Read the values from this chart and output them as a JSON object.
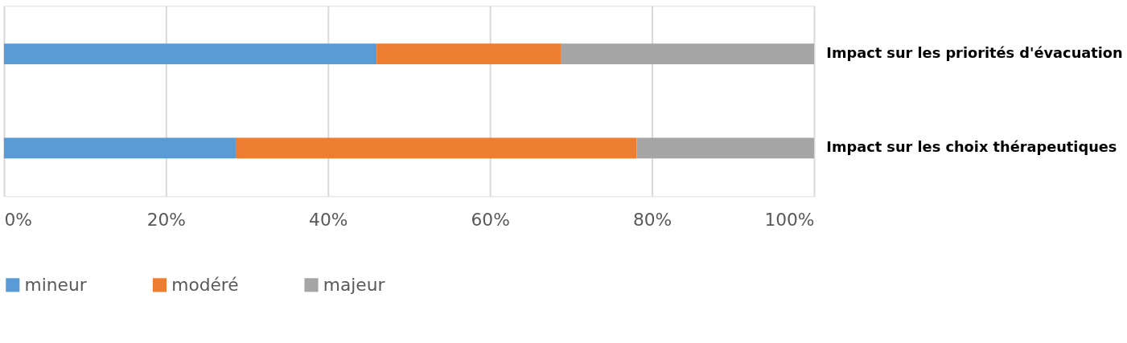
{
  "chart_data": {
    "type": "bar",
    "orientation": "horizontal",
    "stacked": true,
    "categories": [
      "Impact sur les priorités d'évacuation",
      "Impact sur les choix thérapeutiques"
    ],
    "series": [
      {
        "name": "mineur",
        "color": "#5b9bd5",
        "values": [
          46,
          28.6
        ]
      },
      {
        "name": "modéré",
        "color": "#ed7d31",
        "values": [
          22.8,
          49.5
        ]
      },
      {
        "name": "majeur",
        "color": "#a5a5a5",
        "values": [
          31.2,
          21.9
        ]
      }
    ],
    "xlim": [
      0,
      100
    ],
    "xticks": [
      {
        "value": 0,
        "label": "0%"
      },
      {
        "value": 20,
        "label": "20%"
      },
      {
        "value": 40,
        "label": "40%"
      },
      {
        "value": 60,
        "label": "60%"
      },
      {
        "value": 80,
        "label": "80%"
      },
      {
        "value": 100,
        "label": "100%"
      }
    ],
    "grid": "x",
    "legend": "bottom left"
  }
}
